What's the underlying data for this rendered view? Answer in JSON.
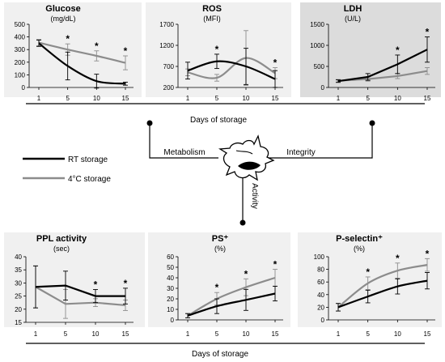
{
  "colors": {
    "rt": "#000000",
    "c4": "#8c8c8c",
    "panel_bg_light": "#f0f0f0",
    "panel_bg_dark": "#dcdcdc"
  },
  "legend": {
    "rt": "RT storage",
    "c4": "4°C storage"
  },
  "diagram": {
    "top_axis_label": "Days of storage",
    "bottom_axis_label": "Days of storage",
    "metabolism": "Metabolism",
    "integrity": "Integrity",
    "activity": "Activity"
  },
  "chart_data": [
    {
      "type": "line",
      "title": "Glucose",
      "unit": "(mg/dL)",
      "categories": [
        "1",
        "5",
        "10",
        "15"
      ],
      "ylim": [
        0,
        500
      ],
      "yticks": [
        0,
        100,
        200,
        300,
        400,
        500
      ],
      "series": [
        {
          "name": "RT storage",
          "values": [
            350,
            170,
            50,
            30
          ],
          "errors": [
            25,
            110,
            55,
            12
          ]
        },
        {
          "name": "4°C storage",
          "values": [
            355,
            300,
            250,
            195
          ],
          "errors": [
            25,
            45,
            40,
            55
          ]
        }
      ],
      "stars": [
        null,
        "*",
        "*",
        "*"
      ]
    },
    {
      "type": "line",
      "title": "ROS",
      "unit": "(MFI)",
      "categories": [
        "1",
        "5",
        "10",
        "15"
      ],
      "ylim": [
        200,
        1700
      ],
      "yticks": [
        200,
        700,
        1200,
        1700
      ],
      "series": [
        {
          "name": "RT storage",
          "values": [
            600,
            820,
            700,
            400
          ],
          "errors": [
            200,
            170,
            430,
            200
          ]
        },
        {
          "name": "4°C storage",
          "values": [
            560,
            430,
            900,
            540
          ],
          "errors": [
            80,
            80,
            650,
            130
          ]
        }
      ],
      "stars": [
        null,
        "*",
        null,
        "*"
      ]
    },
    {
      "type": "line",
      "title": "LDH",
      "unit": "(U/L)",
      "categories": [
        "1",
        "5",
        "10",
        "15"
      ],
      "ylim": [
        0,
        1500
      ],
      "yticks": [
        0,
        500,
        1000,
        1500
      ],
      "series": [
        {
          "name": "RT storage",
          "values": [
            150,
            250,
            550,
            900
          ],
          "errors": [
            30,
            80,
            220,
            300
          ]
        },
        {
          "name": "4°C storage",
          "values": [
            160,
            200,
            270,
            390
          ],
          "errors": [
            30,
            50,
            60,
            80
          ]
        }
      ],
      "stars": [
        null,
        null,
        "*",
        "*"
      ]
    },
    {
      "type": "line",
      "title": "PPL activity",
      "unit": "(sec)",
      "categories": [
        "1",
        "5",
        "10",
        "15"
      ],
      "ylim": [
        15,
        40
      ],
      "yticks": [
        15,
        20,
        25,
        30,
        35,
        40
      ],
      "series": [
        {
          "name": "RT storage",
          "values": [
            28.5,
            29,
            25,
            25
          ],
          "errors": [
            8,
            5.5,
            2.5,
            3
          ]
        },
        {
          "name": "4°C storage",
          "values": [
            28.5,
            22,
            22.5,
            21.5
          ],
          "errors": [
            8,
            5.5,
            1.5,
            2
          ]
        }
      ],
      "stars": [
        null,
        null,
        "*",
        "*"
      ]
    },
    {
      "type": "line",
      "title": "PS⁺",
      "unit": "(%)",
      "categories": [
        "1",
        "5",
        "10",
        "15"
      ],
      "ylim": [
        0,
        60
      ],
      "yticks": [
        0,
        10,
        20,
        30,
        40,
        50,
        60
      ],
      "series": [
        {
          "name": "RT storage",
          "values": [
            4,
            13,
            19,
            25
          ],
          "errors": [
            2,
            7,
            10,
            7
          ]
        },
        {
          "name": "4°C storage",
          "values": [
            4,
            20,
            31,
            40
          ],
          "errors": [
            2,
            6,
            8,
            8
          ]
        }
      ],
      "stars": [
        null,
        "*",
        "*",
        "*"
      ]
    },
    {
      "type": "line",
      "title": "P-selectin⁺",
      "unit": "(%)",
      "categories": [
        "1",
        "5",
        "10",
        "15"
      ],
      "ylim": [
        0,
        100
      ],
      "yticks": [
        0,
        20,
        40,
        60,
        80,
        100
      ],
      "series": [
        {
          "name": "RT storage",
          "values": [
            20,
            37,
            53,
            62
          ],
          "errors": [
            6,
            10,
            12,
            13
          ]
        },
        {
          "name": "4°C storage",
          "values": [
            20,
            58,
            78,
            87
          ],
          "errors": [
            6,
            10,
            12,
            10
          ]
        }
      ],
      "stars": [
        null,
        "*",
        "*",
        "*"
      ]
    }
  ]
}
